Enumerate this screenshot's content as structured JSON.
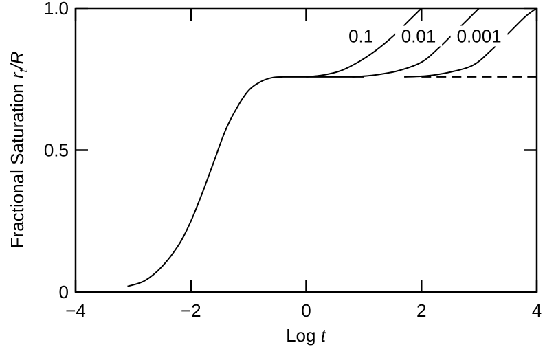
{
  "chart_data": {
    "type": "line",
    "xlabel": {
      "main": "Log ",
      "italic": "t"
    },
    "ylabel": {
      "main": "Fractional Saturation  ",
      "italic_r": "r",
      "sub": "t",
      "rest": "/R"
    },
    "xlim": [
      -4,
      4
    ],
    "ylim": [
      0,
      1.0
    ],
    "x_ticks": [
      {
        "value": -4,
        "label": "−4"
      },
      {
        "value": -2,
        "label": "−2"
      },
      {
        "value": 0,
        "label": "0"
      },
      {
        "value": 2,
        "label": "2"
      },
      {
        "value": 4,
        "label": "4"
      }
    ],
    "y_ticks": [
      {
        "value": 0,
        "label": "0"
      },
      {
        "value": 0.5,
        "label": "0.5"
      },
      {
        "value": 1.0,
        "label": "1.0"
      }
    ],
    "grid": false,
    "series": [
      {
        "style": "solid",
        "x": [
          -3.1,
          -2.8,
          -2.5,
          -2.2,
          -2.0,
          -1.8,
          -1.6,
          -1.4,
          -1.2,
          -1.0,
          -0.8,
          -0.6,
          -0.4,
          -0.2,
          0.0,
          1.0
        ],
        "y": [
          0.02,
          0.04,
          0.09,
          0.17,
          0.25,
          0.35,
          0.46,
          0.57,
          0.65,
          0.71,
          0.74,
          0.755,
          0.758,
          0.758,
          0.758,
          0.758
        ]
      },
      {
        "name": "0.1",
        "style": "solid",
        "x": [
          0.0,
          0.3,
          0.6,
          0.9,
          1.2,
          1.5,
          1.8,
          2.0
        ],
        "y": [
          0.758,
          0.765,
          0.78,
          0.81,
          0.85,
          0.9,
          0.96,
          1.0
        ]
      },
      {
        "name": "0.01",
        "style": "solid",
        "x": [
          0.8,
          1.2,
          1.6,
          2.0,
          2.3,
          2.6,
          2.8,
          3.0
        ],
        "y": [
          0.758,
          0.765,
          0.78,
          0.81,
          0.86,
          0.92,
          0.96,
          1.0
        ]
      },
      {
        "name": "0.001",
        "style": "solid",
        "x": [
          1.7,
          2.1,
          2.5,
          2.9,
          3.2,
          3.5,
          3.8,
          4.0
        ],
        "y": [
          0.758,
          0.762,
          0.775,
          0.8,
          0.85,
          0.91,
          0.97,
          1.0
        ]
      },
      {
        "style": "dashed",
        "x": [
          2.0,
          4.0
        ],
        "y": [
          0.758,
          0.758
        ]
      }
    ],
    "curve_labels": [
      {
        "text": "0.1",
        "x": 0.95,
        "y": 0.885
      },
      {
        "text": "0.01",
        "x": 1.95,
        "y": 0.885
      },
      {
        "text": "0.001",
        "x": 3.0,
        "y": 0.885
      }
    ]
  }
}
